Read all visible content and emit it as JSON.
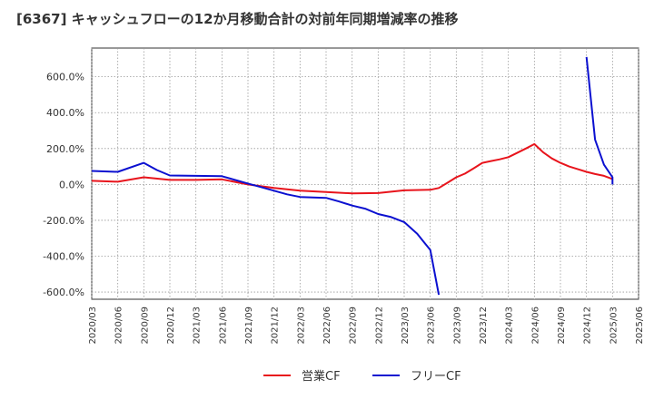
{
  "title": "[6367]  キャッシュフローの12か月移動合計の対前年同期増減率の推移",
  "chart_data": {
    "type": "line",
    "title": "[6367]  キャッシュフローの12か月移動合計の対前年同期増減率の推移",
    "xlabel": "",
    "ylabel": "",
    "ylim": [
      -640,
      760
    ],
    "yticks": [
      600,
      400,
      200,
      0,
      -200,
      -400,
      -600
    ],
    "ytick_labels": [
      "600.0%",
      "400.0%",
      "200.0%",
      "0.0%",
      "-200.0%",
      "-400.0%",
      "-600.0%"
    ],
    "categories": [
      "2020/03",
      "2020/06",
      "2020/09",
      "2020/12",
      "2021/03",
      "2021/06",
      "2021/09",
      "2021/12",
      "2022/03",
      "2022/06",
      "2022/09",
      "2022/12",
      "2023/03",
      "2023/06",
      "2023/09",
      "2023/12",
      "2024/03",
      "2024/06",
      "2024/09",
      "2024/12",
      "2025/03",
      "2025/06"
    ],
    "grid": true,
    "legend_position": "bottom-center",
    "series": [
      {
        "name": "営業CF",
        "color": "#e8141c",
        "points": [
          {
            "x": 0,
            "y": 20
          },
          {
            "x": 1,
            "y": 15
          },
          {
            "x": 2,
            "y": 40
          },
          {
            "x": 3,
            "y": 25
          },
          {
            "x": 4,
            "y": 25
          },
          {
            "x": 5,
            "y": 28
          },
          {
            "x": 6,
            "y": 0
          },
          {
            "x": 7,
            "y": -20
          },
          {
            "x": 8,
            "y": -35
          },
          {
            "x": 9,
            "y": -42
          },
          {
            "x": 10,
            "y": -50
          },
          {
            "x": 11,
            "y": -48
          },
          {
            "x": 12,
            "y": -33
          },
          {
            "x": 13,
            "y": -30
          },
          {
            "x": 13.33,
            "y": -20
          },
          {
            "x": 13.67,
            "y": 10
          },
          {
            "x": 14,
            "y": 40
          },
          {
            "x": 14.33,
            "y": 60
          },
          {
            "x": 14.67,
            "y": 90
          },
          {
            "x": 15,
            "y": 120
          },
          {
            "x": 15.33,
            "y": 130
          },
          {
            "x": 15.67,
            "y": 140
          },
          {
            "x": 16,
            "y": 152
          },
          {
            "x": 16.33,
            "y": 175
          },
          {
            "x": 16.67,
            "y": 200
          },
          {
            "x": 17,
            "y": 225
          },
          {
            "x": 17.33,
            "y": 180
          },
          {
            "x": 17.67,
            "y": 145
          },
          {
            "x": 18,
            "y": 120
          },
          {
            "x": 18.33,
            "y": 100
          },
          {
            "x": 18.67,
            "y": 85
          },
          {
            "x": 19,
            "y": 70
          },
          {
            "x": 19.33,
            "y": 58
          },
          {
            "x": 19.67,
            "y": 48
          },
          {
            "x": 20,
            "y": 30
          }
        ]
      },
      {
        "name": "フリーCF",
        "color": "#0b10d0",
        "points": [
          {
            "x": 0,
            "y": 75
          },
          {
            "x": 1,
            "y": 70
          },
          {
            "x": 2,
            "y": 120
          },
          {
            "x": 2.5,
            "y": 80
          },
          {
            "x": 3,
            "y": 50
          },
          {
            "x": 4,
            "y": 48
          },
          {
            "x": 5,
            "y": 46
          },
          {
            "x": 6,
            "y": 5
          },
          {
            "x": 6.5,
            "y": -15
          },
          {
            "x": 7,
            "y": -35
          },
          {
            "x": 7.5,
            "y": -55
          },
          {
            "x": 8,
            "y": -70
          },
          {
            "x": 9,
            "y": -75
          },
          {
            "x": 9.5,
            "y": -95
          },
          {
            "x": 10,
            "y": -118
          },
          {
            "x": 10.5,
            "y": -135
          },
          {
            "x": 11,
            "y": -165
          },
          {
            "x": 11.5,
            "y": -182
          },
          {
            "x": 12,
            "y": -210
          },
          {
            "x": 12.5,
            "y": -275
          },
          {
            "x": 12.75,
            "y": -320
          },
          {
            "x": 13,
            "y": -365
          },
          {
            "x": 13.33,
            "y": -615
          },
          {
            "x": 19,
            "y": 710
          },
          {
            "x": 19.33,
            "y": 250
          },
          {
            "x": 19.67,
            "y": 110
          },
          {
            "x": 20,
            "y": 40
          },
          {
            "x": 20,
            "y": 0
          }
        ],
        "segments": [
          [
            0,
            22
          ],
          [
            23,
            27
          ]
        ]
      }
    ]
  }
}
